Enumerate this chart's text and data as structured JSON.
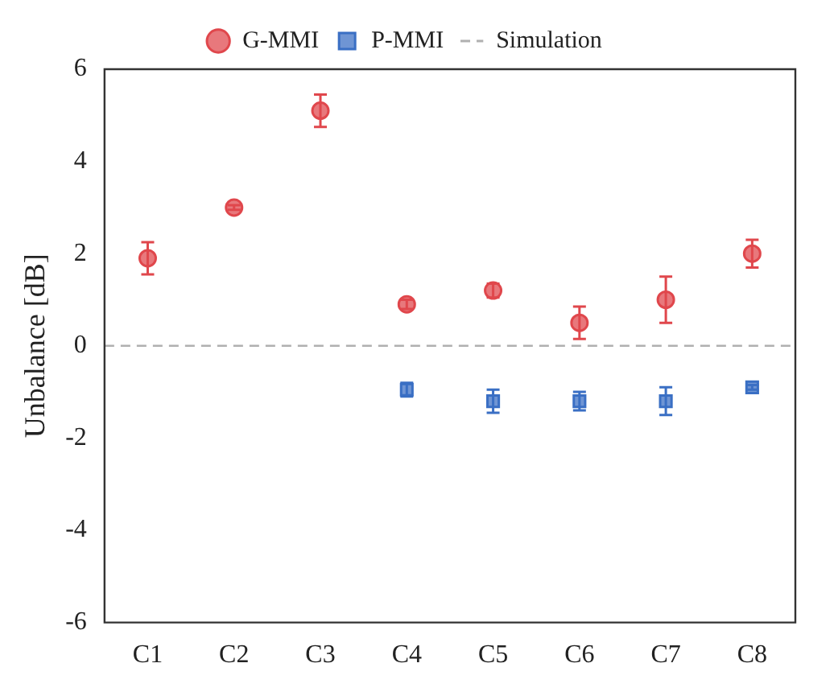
{
  "chart_data": {
    "type": "scatter",
    "ylabel": "Unbalance [dB]",
    "categories": [
      "C1",
      "C2",
      "C3",
      "C4",
      "C5",
      "C6",
      "C7",
      "C8"
    ],
    "series": [
      {
        "name": "G-MMI",
        "color": "#e0474c",
        "marker": "circle",
        "values": [
          1.9,
          3.0,
          5.1,
          0.9,
          1.2,
          0.5,
          1.0,
          2.0
        ],
        "errors": [
          0.35,
          0.05,
          0.35,
          0.1,
          0.15,
          0.35,
          0.5,
          0.3
        ]
      },
      {
        "name": "P-MMI",
        "color": "#3a6fc4",
        "marker": "square",
        "values": [
          null,
          null,
          null,
          -0.95,
          -1.2,
          -1.2,
          -1.2,
          -0.9
        ],
        "errors": [
          null,
          null,
          null,
          0.15,
          0.25,
          0.2,
          0.3,
          0.05
        ]
      }
    ],
    "ref_lines": [
      {
        "axis": "y",
        "value": 0,
        "label": "Simulation",
        "color": "#b0b0b0",
        "line_style": "dashed"
      }
    ],
    "ylim": [
      -6,
      6
    ],
    "yticks": [
      -6,
      -4,
      -2,
      0,
      2,
      4,
      6
    ],
    "grid": false,
    "legend": "top"
  }
}
